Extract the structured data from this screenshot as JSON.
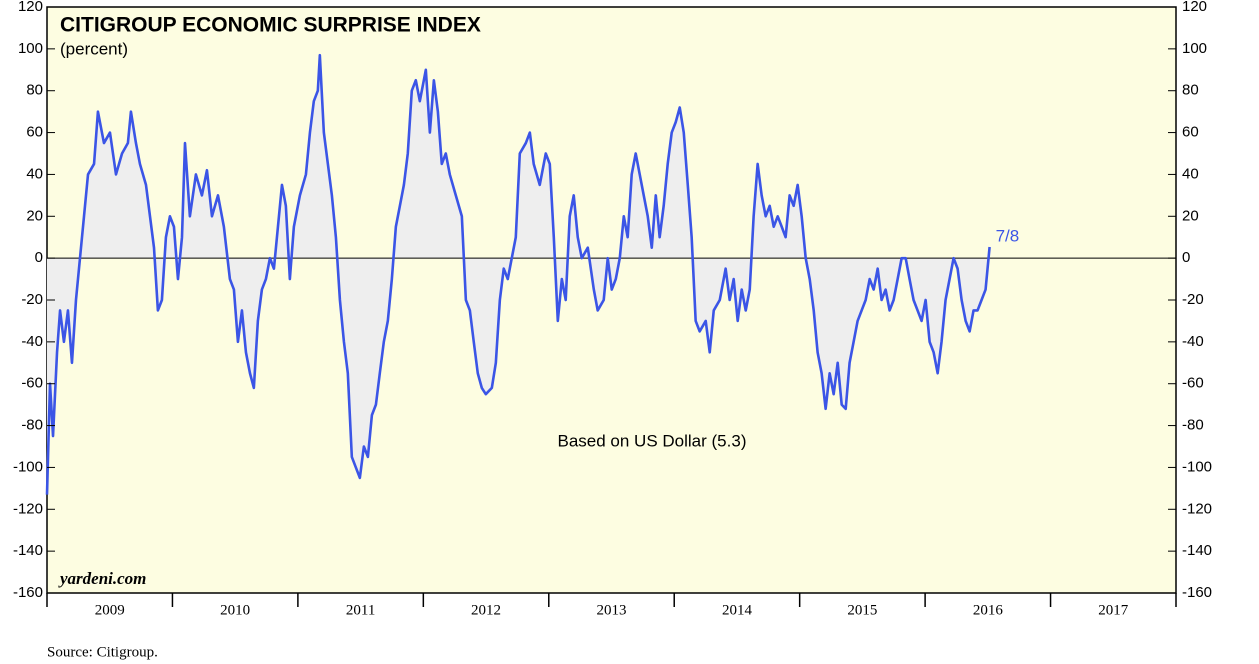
{
  "chart_data": {
    "type": "line",
    "title": "CITIGROUP ECONOMIC SURPRISE INDEX",
    "subtitle": "(percent)",
    "annotation": "7/8",
    "note": "Based on US Dollar (5.3)",
    "watermark": "yardeni.com",
    "source": "Source: Citigroup.",
    "xlim": [
      2009,
      2018
    ],
    "xticks": [
      2009,
      2010,
      2011,
      2012,
      2013,
      2014,
      2015,
      2016,
      2017
    ],
    "ylim": [
      -160,
      120
    ],
    "yticks": [
      -160,
      -140,
      -120,
      -100,
      -80,
      -60,
      -40,
      -20,
      0,
      20,
      40,
      60,
      80,
      100,
      120
    ],
    "grid": false,
    "background": "#fdfde1",
    "area_color": "#eeeeee",
    "x": [
      2009.0,
      2009.024,
      2009.048,
      2009.08,
      2009.104,
      2009.135,
      2009.167,
      2009.199,
      2009.231,
      2009.263,
      2009.295,
      2009.327,
      2009.375,
      2009.406,
      2009.454,
      2009.502,
      2009.55,
      2009.598,
      2009.645,
      2009.669,
      2009.709,
      2009.741,
      2009.789,
      2009.821,
      2009.853,
      2009.884,
      2009.916,
      2009.948,
      2009.98,
      2010.012,
      2010.044,
      2010.076,
      2010.1,
      2010.139,
      2010.187,
      2010.235,
      2010.275,
      2010.315,
      2010.363,
      2010.41,
      2010.458,
      2010.49,
      2010.522,
      2010.554,
      2010.586,
      2010.618,
      2010.649,
      2010.681,
      2010.713,
      2010.745,
      2010.777,
      2010.809,
      2010.841,
      2010.873,
      2010.904,
      2010.936,
      2010.968,
      2011.016,
      2011.064,
      2011.096,
      2011.127,
      2011.159,
      2011.175,
      2011.207,
      2011.239,
      2011.271,
      2011.303,
      2011.335,
      2011.367,
      2011.398,
      2011.43,
      2011.462,
      2011.494,
      2011.526,
      2011.558,
      2011.59,
      2011.622,
      2011.653,
      2011.685,
      2011.717,
      2011.749,
      2011.781,
      2011.813,
      2011.845,
      2011.876,
      2011.908,
      2011.94,
      2011.972,
      2012.02,
      2012.052,
      2012.084,
      2012.116,
      2012.147,
      2012.179,
      2012.211,
      2012.259,
      2012.307,
      2012.339,
      2012.371,
      2012.402,
      2012.434,
      2012.466,
      2012.498,
      2012.546,
      2012.578,
      2012.61,
      2012.641,
      2012.673,
      2012.705,
      2012.737,
      2012.769,
      2012.817,
      2012.849,
      2012.88,
      2012.928,
      2012.976,
      2013.008,
      2013.04,
      2013.072,
      2013.104,
      2013.135,
      2013.167,
      2013.199,
      2013.231,
      2013.263,
      2013.311,
      2013.359,
      2013.39,
      2013.438,
      2013.47,
      2013.502,
      2013.534,
      2013.566,
      2013.598,
      2013.629,
      2013.661,
      2013.693,
      2013.725,
      2013.757,
      2013.789,
      2013.821,
      2013.853,
      2013.884,
      2013.916,
      2013.948,
      2013.98,
      2014.012,
      2014.044,
      2014.076,
      2014.108,
      2014.139,
      2014.171,
      2014.203,
      2014.251,
      2014.283,
      2014.315,
      2014.363,
      2014.41,
      2014.442,
      2014.474,
      2014.506,
      2014.538,
      2014.57,
      2014.602,
      2014.633,
      2014.665,
      2014.697,
      2014.729,
      2014.761,
      2014.793,
      2014.825,
      2014.857,
      2014.888,
      2014.92,
      2014.952,
      2014.984,
      2015.016,
      2015.048,
      2015.08,
      2015.112,
      2015.143,
      2015.175,
      2015.207,
      2015.239,
      2015.271,
      2015.303,
      2015.335,
      2015.367,
      2015.398,
      2015.43,
      2015.462,
      2015.494,
      2015.526,
      2015.558,
      2015.59,
      2015.622,
      2015.653,
      2015.685,
      2015.717,
      2015.749,
      2015.781,
      2015.813,
      2015.845,
      2015.876,
      2015.908,
      2015.94,
      2015.972,
      2016.004,
      2016.036,
      2016.068,
      2016.1,
      2016.131,
      2016.163,
      2016.195,
      2016.227,
      2016.259,
      2016.291,
      2016.323,
      2016.355,
      2016.386,
      2016.418,
      2016.45,
      2016.482,
      2016.514
    ],
    "series": [
      {
        "color": "#3b55e6",
        "values": [
          -113,
          -60,
          -85,
          -45,
          -25,
          -40,
          -25,
          -50,
          -20,
          0,
          20,
          40,
          45,
          70,
          55,
          60,
          40,
          50,
          55,
          70,
          55,
          45,
          35,
          20,
          5,
          -25,
          -20,
          10,
          20,
          15,
          -10,
          10,
          55,
          20,
          40,
          30,
          42,
          20,
          30,
          15,
          -10,
          -15,
          -40,
          -25,
          -45,
          -55,
          -62,
          -30,
          -15,
          -10,
          0,
          -5,
          15,
          35,
          25,
          -10,
          15,
          30,
          40,
          60,
          75,
          80,
          97,
          60,
          45,
          30,
          10,
          -20,
          -40,
          -55,
          -95,
          -100,
          -105,
          -90,
          -95,
          -75,
          -70,
          -55,
          -40,
          -30,
          -10,
          15,
          25,
          35,
          50,
          80,
          85,
          75,
          90,
          60,
          85,
          70,
          45,
          50,
          40,
          30,
          20,
          -20,
          -25,
          -40,
          -55,
          -62,
          -65,
          -62,
          -50,
          -20,
          -5,
          -10,
          0,
          10,
          50,
          55,
          60,
          45,
          35,
          50,
          45,
          10,
          -30,
          -10,
          -20,
          20,
          30,
          10,
          0,
          5,
          -15,
          -25,
          -20,
          0,
          -15,
          -10,
          0,
          20,
          10,
          40,
          50,
          40,
          30,
          20,
          5,
          30,
          10,
          25,
          45,
          60,
          65,
          72,
          60,
          35,
          10,
          -30,
          -35,
          -30,
          -45,
          -25,
          -20,
          -5,
          -20,
          -10,
          -30,
          -15,
          -25,
          -15,
          20,
          45,
          30,
          20,
          25,
          15,
          20,
          15,
          10,
          30,
          25,
          35,
          20,
          0,
          -10,
          -25,
          -45,
          -55,
          -72,
          -55,
          -65,
          -50,
          -70,
          -72,
          -50,
          -40,
          -30,
          -25,
          -20,
          -10,
          -15,
          -5,
          -20,
          -15,
          -25,
          -20,
          -10,
          0,
          0,
          -10,
          -20,
          -25,
          -30,
          -20,
          -40,
          -45,
          -55,
          -40,
          -20,
          -10,
          0,
          -5,
          -20,
          -30,
          -35,
          -25,
          -25,
          -20,
          -15,
          5.3
        ]
      }
    ]
  }
}
